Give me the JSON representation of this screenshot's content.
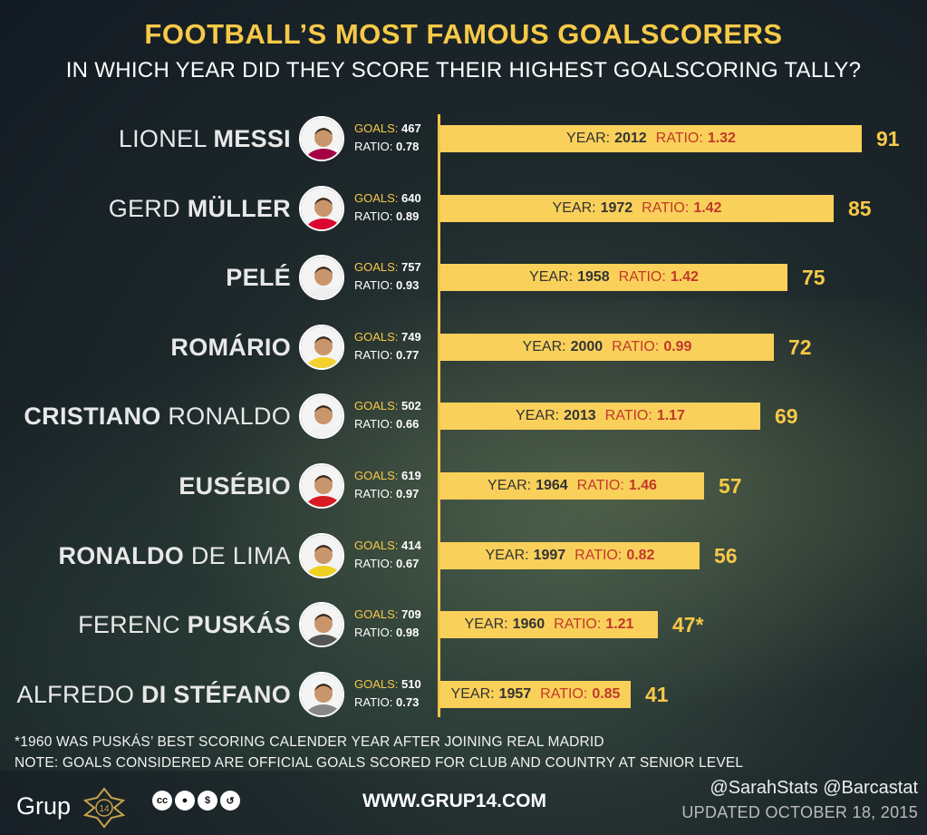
{
  "chart_data": {
    "type": "bar",
    "title": "FOOTBALL’S MOST FAMOUS GOALSCORERS",
    "subtitle": "IN WHICH YEAR DID THEY SCORE THEIR HIGHEST GOALSCORING TALLY?",
    "categories": [
      "LIONEL MESSI",
      "GERD MÜLLER",
      "PELÉ",
      "ROMÁRIO",
      "CRISTIANO RONALDO",
      "EUSÉBIO",
      "RONALDO DE LIMA",
      "FERENC PUSKÁS",
      "ALFREDO DI STÉFANO"
    ],
    "values": [
      91,
      85,
      75,
      72,
      69,
      57,
      56,
      47,
      41
    ],
    "value_labels": [
      "91",
      "85",
      "75",
      "72",
      "69",
      "57",
      "56",
      "47*",
      "41"
    ],
    "players": [
      {
        "first": "LIONEL ",
        "last": "MESSI",
        "bold_first": false,
        "goals": "467",
        "ratio": "0.78",
        "year": "2012",
        "peak_ratio": "1.32",
        "kit": "#a50044"
      },
      {
        "first": "GERD ",
        "last": "MÜLLER",
        "bold_first": false,
        "goals": "640",
        "ratio": "0.89",
        "year": "1972",
        "peak_ratio": "1.42",
        "kit": "#dc052d"
      },
      {
        "first": "",
        "last": "PELÉ",
        "bold_first": false,
        "goals": "757",
        "ratio": "0.93",
        "year": "1958",
        "peak_ratio": "1.42",
        "kit": "#eeeeee"
      },
      {
        "first": "",
        "last": "ROMÁRIO",
        "bold_first": false,
        "goals": "749",
        "ratio": "0.77",
        "year": "2000",
        "peak_ratio": "0.99",
        "kit": "#f5d130"
      },
      {
        "first": "CRISTIANO ",
        "last": "RONALDO",
        "bold_first": true,
        "goals": "502",
        "ratio": "0.66",
        "year": "2013",
        "peak_ratio": "1.17",
        "kit": "#f2f2f2"
      },
      {
        "first": "",
        "last": "EUSÉBIO",
        "bold_first": false,
        "goals": "619",
        "ratio": "0.97",
        "year": "1964",
        "peak_ratio": "1.46",
        "kit": "#d91a21"
      },
      {
        "first": "RONALDO ",
        "last": "DE LIMA",
        "bold_first": true,
        "goals": "414",
        "ratio": "0.67",
        "year": "1997",
        "peak_ratio": "0.82",
        "kit": "#f0d020"
      },
      {
        "first": "FERENC ",
        "last": "PUSKÁS",
        "bold_first": false,
        "goals": "709",
        "ratio": "0.98",
        "year": "1960",
        "peak_ratio": "1.21",
        "kit": "#555555"
      },
      {
        "first": "ALFREDO ",
        "last": "DI STÉFANO",
        "bold_first": false,
        "goals": "510",
        "ratio": "0.73",
        "year": "1957",
        "peak_ratio": "0.85",
        "kit": "#888888"
      }
    ],
    "labels": {
      "goals": "GOALS:",
      "ratio": "RATIO:",
      "year": "YEAR:",
      "bar_ratio": "RATIO:"
    },
    "bar_color": "#f9d05a",
    "accent": "#f7c948",
    "ratio_color": "#c0392b"
  },
  "notes": {
    "note1": "*1960 WAS PUSKÁS’ BEST SCORING CALENDER YEAR AFTER JOINING REAL MADRID",
    "note2": "NOTE: GOALS CONSIDERED ARE OFFICIAL GOALS SCORED FOR CLUB AND COUNTRY AT SENIOR LEVEL"
  },
  "footer": {
    "logo": "Grup",
    "logo_num": "14",
    "url": "WWW.GRUP14.COM",
    "handles": "@SarahStats  @Barcastat",
    "updated": "UPDATED OCTOBER 18, 2015",
    "cc_icons": [
      "cc",
      "by",
      "nc",
      "sa"
    ]
  }
}
